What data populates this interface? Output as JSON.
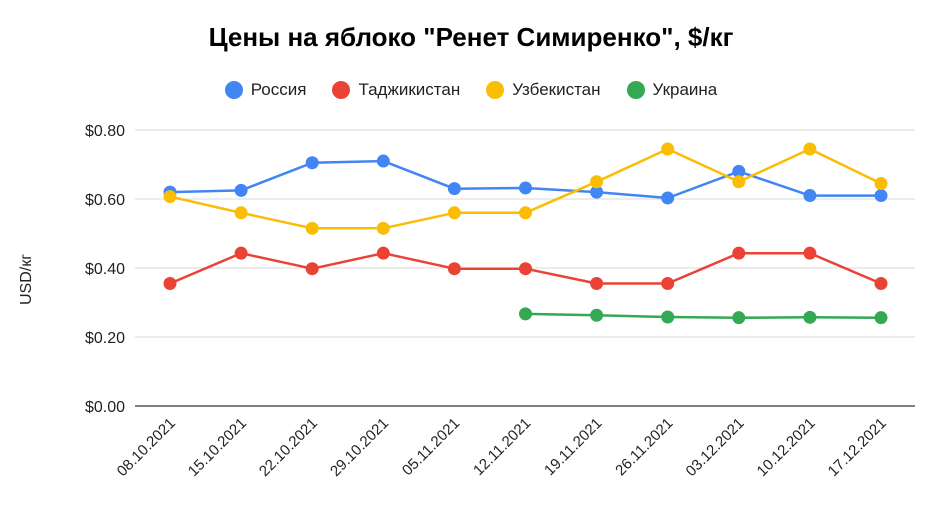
{
  "chart_data": {
    "type": "line",
    "title": "Цены на яблоко \"Ренет Симиренко\", $/кг",
    "xlabel": "",
    "ylabel": "USD/кг",
    "ylim": [
      0,
      0.8
    ],
    "yticks": [
      "$0.00",
      "$0.20",
      "$0.40",
      "$0.60",
      "$0.80"
    ],
    "ytick_values": [
      0,
      0.2,
      0.4,
      0.6,
      0.8
    ],
    "grid": true,
    "legend_position": "top",
    "categories": [
      "08.10.2021",
      "15.10.2021",
      "22.10.2021",
      "29.10.2021",
      "05.11.2021",
      "12.11.2021",
      "19.11.2021",
      "26.11.2021",
      "03.12.2021",
      "10.12.2021",
      "17.12.2021"
    ],
    "series": [
      {
        "name": "Россия",
        "color": "#4285F4",
        "values": [
          0.62,
          0.625,
          0.705,
          0.71,
          0.63,
          0.632,
          0.62,
          0.603,
          0.68,
          0.61,
          0.61
        ]
      },
      {
        "name": "Таджикистан",
        "color": "#EA4335",
        "values": [
          0.355,
          0.443,
          0.398,
          0.443,
          0.398,
          0.398,
          0.355,
          0.355,
          0.443,
          0.443,
          0.355
        ]
      },
      {
        "name": "Узбекистан",
        "color": "#FBBC04",
        "values": [
          0.607,
          0.56,
          0.515,
          0.515,
          0.56,
          0.56,
          0.65,
          0.745,
          0.65,
          0.745,
          0.645
        ]
      },
      {
        "name": "Украина",
        "color": "#34A853",
        "values": [
          null,
          null,
          null,
          null,
          null,
          0.267,
          0.263,
          0.258,
          0.256,
          0.257,
          0.256
        ]
      }
    ]
  }
}
